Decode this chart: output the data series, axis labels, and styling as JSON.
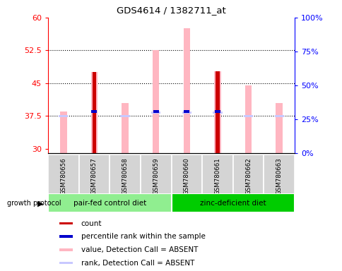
{
  "title": "GDS4614 / 1382711_at",
  "samples": [
    "GSM780656",
    "GSM780657",
    "GSM780658",
    "GSM780659",
    "GSM780660",
    "GSM780661",
    "GSM780662",
    "GSM780663"
  ],
  "groups": [
    {
      "label": "pair-fed control diet",
      "color": "#90ee90",
      "indices": [
        0,
        1,
        2,
        3
      ]
    },
    {
      "label": "zinc-deficient diet",
      "color": "#00cc00",
      "indices": [
        4,
        5,
        6,
        7
      ]
    }
  ],
  "ylim_left": [
    29,
    60
  ],
  "ylim_right": [
    0,
    100
  ],
  "yticks_left": [
    30,
    37.5,
    45,
    52.5,
    60
  ],
  "yticks_right": [
    0,
    25,
    50,
    75,
    100
  ],
  "ytick_labels_right": [
    "0%",
    "25%",
    "50%",
    "75%",
    "100%"
  ],
  "count_values": [
    null,
    47.5,
    null,
    null,
    null,
    47.8,
    null,
    null
  ],
  "count_color": "#cc0000",
  "rank_values": [
    null,
    38.5,
    null,
    38.5,
    38.5,
    38.5,
    null,
    null
  ],
  "rank_color": "#0000cc",
  "value_absent_tops": [
    38.5,
    47.5,
    40.5,
    52.5,
    57.5,
    47.8,
    44.5,
    40.5
  ],
  "value_absent_color": "#ffb6c1",
  "rank_absent_values": [
    37.5,
    null,
    37.5,
    38.3,
    38.3,
    38.3,
    37.5,
    37.5
  ],
  "rank_absent_color": "#c8c8ff",
  "dotted_line_values": [
    37.5,
    45,
    52.5
  ],
  "growth_protocol_label": "growth protocol",
  "legend_items": [
    {
      "color": "#cc0000",
      "label": "count"
    },
    {
      "color": "#0000cc",
      "label": "percentile rank within the sample"
    },
    {
      "color": "#ffb6c1",
      "label": "value, Detection Call = ABSENT"
    },
    {
      "color": "#c8c8ff",
      "label": "rank, Detection Call = ABSENT"
    }
  ]
}
